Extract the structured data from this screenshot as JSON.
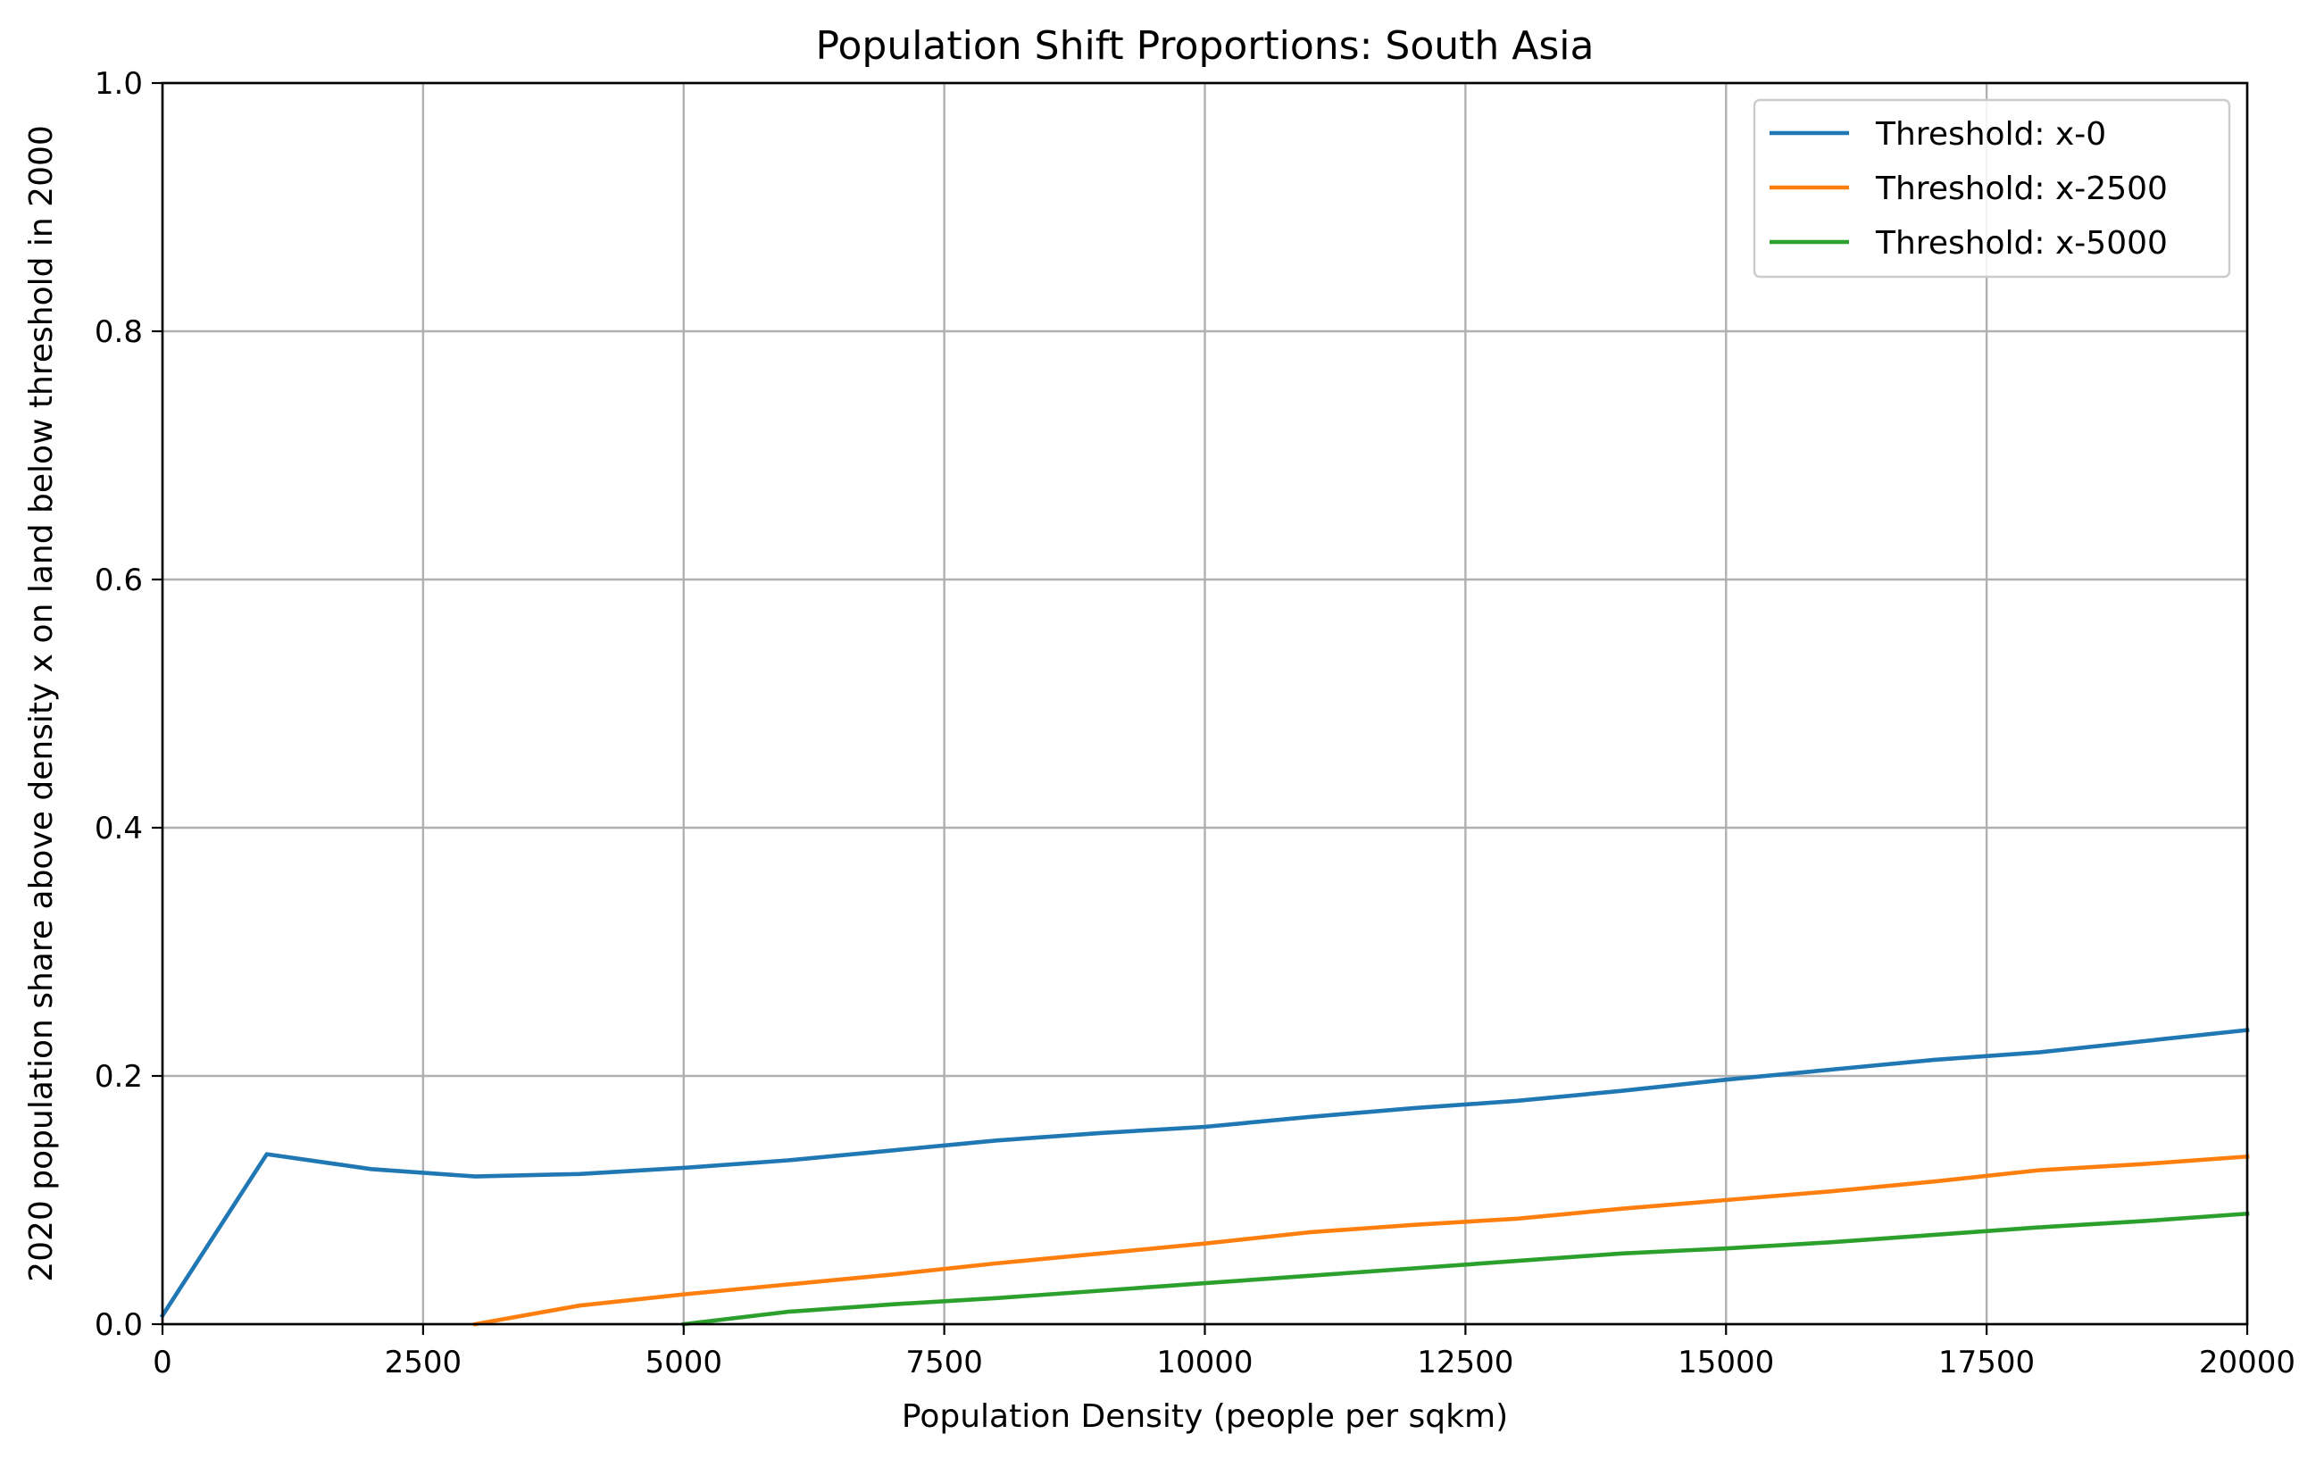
{
  "chart_data": {
    "type": "line",
    "title": "Population Shift Proportions: South Asia",
    "xlabel": "Population Density (people per sqkm)",
    "ylabel": "2020 population share above density x on land below threshold in 2000",
    "xlim": [
      0,
      20000
    ],
    "ylim": [
      0,
      1.0
    ],
    "x_ticks": [
      0,
      2500,
      5000,
      7500,
      10000,
      12500,
      15000,
      17500,
      20000
    ],
    "x_tick_labels": [
      "0",
      "2500",
      "5000",
      "7500",
      "10000",
      "12500",
      "15000",
      "17500",
      "20000"
    ],
    "y_ticks": [
      0,
      0.2,
      0.4,
      0.6,
      0.8,
      1.0
    ],
    "y_tick_labels": [
      "0.0",
      "0.2",
      "0.4",
      "0.6",
      "0.8",
      "1.0"
    ],
    "grid": true,
    "legend_position": "top-right",
    "series": [
      {
        "name": "Threshold: x-0",
        "color": "#1f77b4",
        "x": [
          0,
          1000,
          2000,
          3000,
          4000,
          5000,
          6000,
          7000,
          8000,
          9000,
          10000,
          11000,
          12000,
          13000,
          14000,
          15000,
          16000,
          17000,
          18000,
          19000,
          20000
        ],
        "y": [
          0.007,
          0.137,
          0.125,
          0.119,
          0.121,
          0.126,
          0.132,
          0.14,
          0.148,
          0.154,
          0.159,
          0.167,
          0.174,
          0.18,
          0.188,
          0.197,
          0.205,
          0.213,
          0.219,
          0.228,
          0.237
        ]
      },
      {
        "name": "Threshold: x-2500",
        "color": "#ff7f0e",
        "x": [
          3000,
          4000,
          5000,
          6000,
          7000,
          8000,
          9000,
          10000,
          11000,
          12000,
          13000,
          14000,
          15000,
          16000,
          17000,
          18000,
          19000,
          20000
        ],
        "y": [
          0.0,
          0.015,
          0.024,
          0.032,
          0.04,
          0.049,
          0.057,
          0.065,
          0.074,
          0.08,
          0.085,
          0.093,
          0.1,
          0.107,
          0.115,
          0.124,
          0.129,
          0.135
        ]
      },
      {
        "name": "Threshold: x-5000",
        "color": "#2ca02c",
        "x": [
          5000,
          6000,
          7000,
          8000,
          9000,
          10000,
          11000,
          12000,
          13000,
          14000,
          15000,
          16000,
          17000,
          18000,
          19000,
          20000
        ],
        "y": [
          0.0,
          0.01,
          0.016,
          0.021,
          0.027,
          0.033,
          0.039,
          0.045,
          0.051,
          0.057,
          0.061,
          0.066,
          0.072,
          0.078,
          0.083,
          0.089
        ]
      }
    ]
  }
}
